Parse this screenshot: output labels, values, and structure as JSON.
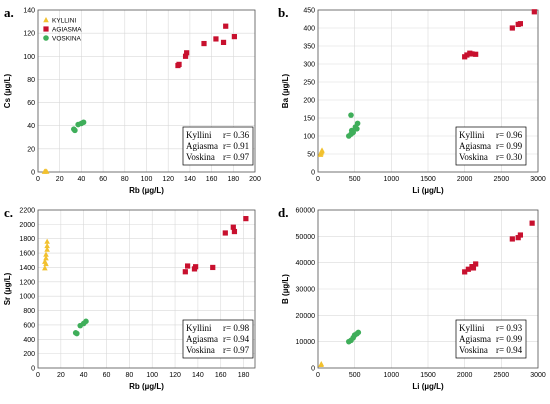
{
  "colors": {
    "kyllini": "#F2C12E",
    "agiasma": "#C8102E",
    "voskina": "#3FAE5A"
  },
  "legend": {
    "kyllini": "KYLLINI",
    "agiasma": "AGIASMA",
    "voskina": "VOSKINA"
  },
  "chart_data": [
    {
      "letter": "a.",
      "type": "scatter",
      "xlabel": "Rb (µg/L)",
      "ylabel": "Cs (µg/L)",
      "xlim": [
        0,
        200
      ],
      "ylim": [
        0,
        140
      ],
      "xticks": [
        0,
        20,
        40,
        60,
        80,
        100,
        120,
        140,
        160,
        180,
        200
      ],
      "yticks": [
        0,
        20,
        40,
        60,
        80,
        100,
        120,
        140
      ],
      "legend_position": "top-left",
      "series": [
        {
          "name": "KYLLINI",
          "points": [
            [
              6,
              0.3
            ],
            [
              7,
              0.5
            ],
            [
              8,
              0.4
            ]
          ]
        },
        {
          "name": "AGIASMA",
          "points": [
            [
              129,
              92
            ],
            [
              130,
              93
            ],
            [
              136,
              100
            ],
            [
              137,
              103
            ],
            [
              153,
              111
            ],
            [
              164,
              115
            ],
            [
              171,
              112
            ],
            [
              173,
              126
            ],
            [
              181,
              117
            ]
          ]
        },
        {
          "name": "VOSKINA",
          "points": [
            [
              33,
              37
            ],
            [
              34,
              36
            ],
            [
              37,
              41
            ],
            [
              40,
              42
            ],
            [
              42,
              43
            ]
          ]
        }
      ],
      "stats": [
        {
          "label": "Kyllini",
          "r": "r= 0.36"
        },
        {
          "label": "Agiasma",
          "r": "r= 0.91"
        },
        {
          "label": "Voskina",
          "r": "r= 0.97"
        }
      ]
    },
    {
      "letter": "b.",
      "type": "scatter",
      "xlabel": "Li (µg/L)",
      "ylabel": "Ba (µg/L)",
      "xlim": [
        0,
        3000
      ],
      "ylim": [
        0,
        450
      ],
      "xticks": [
        0,
        500,
        1000,
        1500,
        2000,
        2500,
        3000
      ],
      "yticks": [
        0,
        50,
        100,
        150,
        200,
        250,
        300,
        350,
        400,
        450
      ],
      "series": [
        {
          "name": "KYLLINI",
          "points": [
            [
              35,
              48
            ],
            [
              40,
              52
            ],
            [
              45,
              55
            ],
            [
              50,
              58
            ],
            [
              55,
              60
            ]
          ]
        },
        {
          "name": "AGIASMA",
          "points": [
            [
              2000,
              320
            ],
            [
              2030,
              325
            ],
            [
              2070,
              330
            ],
            [
              2100,
              328
            ],
            [
              2150,
              327
            ],
            [
              2650,
              400
            ],
            [
              2730,
              410
            ],
            [
              2760,
              412
            ],
            [
              2950,
              445
            ]
          ]
        },
        {
          "name": "VOSKINA",
          "points": [
            [
              420,
              100
            ],
            [
              450,
              105
            ],
            [
              460,
              115
            ],
            [
              480,
              110
            ],
            [
              510,
              125
            ],
            [
              540,
              135
            ],
            [
              450,
              158
            ],
            [
              530,
              120
            ]
          ]
        }
      ],
      "stats": [
        {
          "label": "Kyllini",
          "r": "r= 0.96"
        },
        {
          "label": "Agiasma",
          "r": "r= 0.99"
        },
        {
          "label": "Voskina",
          "r": "r= 0.30"
        }
      ]
    },
    {
      "letter": "c.",
      "type": "scatter",
      "xlabel": "Rb (µg/L)",
      "ylabel": "Sr (µg/L)",
      "xlim": [
        0,
        190
      ],
      "ylim": [
        0,
        2200
      ],
      "xticks": [
        0,
        20,
        40,
        60,
        80,
        100,
        120,
        140,
        160,
        180
      ],
      "yticks": [
        0,
        200,
        400,
        600,
        800,
        1000,
        1200,
        1400,
        1600,
        1800,
        2000,
        2200
      ],
      "series": [
        {
          "name": "KYLLINI",
          "points": [
            [
              6,
              1390
            ],
            [
              6,
              1480
            ],
            [
              7,
              1530
            ],
            [
              7,
              1580
            ],
            [
              8,
              1650
            ],
            [
              8,
              1700
            ],
            [
              8,
              1760
            ],
            [
              7,
              1450
            ]
          ]
        },
        {
          "name": "AGIASMA",
          "points": [
            [
              129,
              1340
            ],
            [
              131,
              1420
            ],
            [
              137,
              1380
            ],
            [
              138,
              1410
            ],
            [
              153,
              1400
            ],
            [
              164,
              1880
            ],
            [
              171,
              1960
            ],
            [
              172,
              1900
            ],
            [
              182,
              2080
            ]
          ]
        },
        {
          "name": "VOSKINA",
          "points": [
            [
              33,
              490
            ],
            [
              34,
              480
            ],
            [
              37,
              590
            ],
            [
              40,
              620
            ],
            [
              42,
              650
            ]
          ]
        }
      ],
      "stats": [
        {
          "label": "Kyllini",
          "r": "r= 0.98"
        },
        {
          "label": "Agiasma",
          "r": "r= 0.94"
        },
        {
          "label": "Voskina",
          "r": "r= 0.97"
        }
      ]
    },
    {
      "letter": "d.",
      "type": "scatter",
      "xlabel": "Li (µg/L)",
      "ylabel": "B (µg/L)",
      "xlim": [
        0,
        3000
      ],
      "ylim": [
        0,
        60000
      ],
      "xticks": [
        0,
        500,
        1000,
        1500,
        2000,
        2500,
        3000
      ],
      "yticks": [
        0,
        10000,
        20000,
        30000,
        40000,
        50000,
        60000
      ],
      "series": [
        {
          "name": "KYLLINI",
          "points": [
            [
              40,
              1200
            ],
            [
              45,
              1500
            ]
          ]
        },
        {
          "name": "AGIASMA",
          "points": [
            [
              2000,
              36500
            ],
            [
              2050,
              37500
            ],
            [
              2100,
              38500
            ],
            [
              2120,
              38000
            ],
            [
              2150,
              39500
            ],
            [
              2650,
              49000
            ],
            [
              2730,
              49500
            ],
            [
              2760,
              50500
            ],
            [
              2920,
              55000
            ]
          ]
        },
        {
          "name": "VOSKINA",
          "points": [
            [
              420,
              10000
            ],
            [
              450,
              10500
            ],
            [
              480,
              11500
            ],
            [
              500,
              12500
            ],
            [
              530,
              13000
            ],
            [
              550,
              13500
            ]
          ]
        }
      ],
      "stats": [
        {
          "label": "Kyllini",
          "r": "r= 0.93"
        },
        {
          "label": "Agiasma",
          "r": "r= 0.99"
        },
        {
          "label": "Voskina",
          "r": "r= 0.94"
        }
      ]
    }
  ]
}
